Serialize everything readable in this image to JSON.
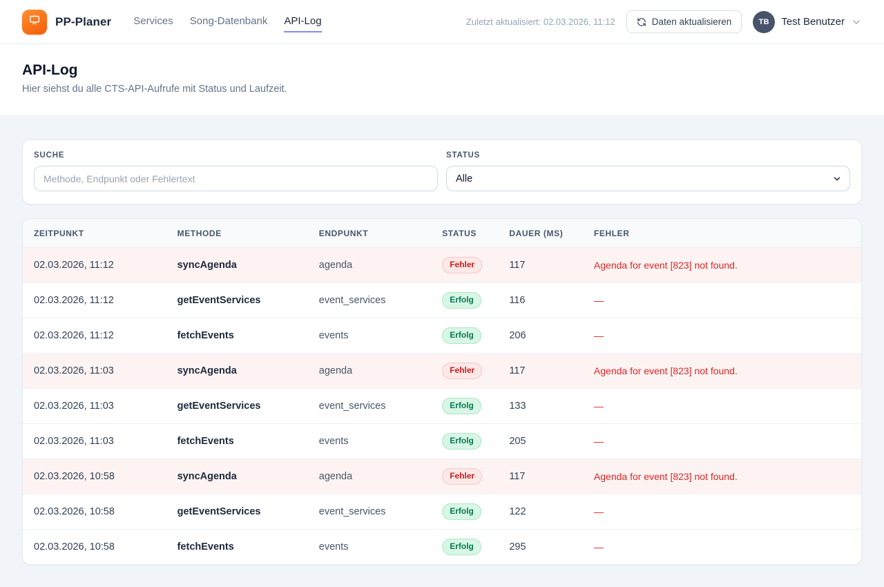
{
  "brand": {
    "name": "PP-Planer",
    "logo_icon": "presentation-board-icon",
    "logo_color": "#f97316"
  },
  "nav": {
    "items": [
      {
        "label": "Services",
        "active": false
      },
      {
        "label": "Song-Datenbank",
        "active": false
      },
      {
        "label": "API-Log",
        "active": true
      }
    ],
    "active_underline_color": "#818cf8"
  },
  "header": {
    "last_updated": "Zuletzt aktualisiert: 02.03.2026, 11:12",
    "refresh_button_label": "Daten aktualisieren",
    "refresh_icon": "refresh-icon",
    "user": {
      "initials": "TB",
      "name": "Test Benutzer",
      "chevron_icon": "chevron-down-icon"
    }
  },
  "page": {
    "title": "API-Log",
    "subtitle": "Hier siehst du alle CTS-API-Aufrufe mit Status und Laufzeit."
  },
  "filters": {
    "search": {
      "label": "SUCHE",
      "placeholder": "Methode, Endpunkt oder Fehlertext",
      "value": ""
    },
    "status": {
      "label": "STATUS",
      "selected": "Alle"
    }
  },
  "table": {
    "columns": [
      "ZEITPUNKT",
      "METHODE",
      "ENDPUNKT",
      "STATUS",
      "DAUER (MS)",
      "FEHLER"
    ],
    "rows": [
      {
        "timestamp": "02.03.2026, 11:12",
        "method": "syncAgenda",
        "endpoint": "agenda",
        "status": "Fehler",
        "state": "error",
        "duration_ms": "117",
        "error": "Agenda for event [823] not found."
      },
      {
        "timestamp": "02.03.2026, 11:12",
        "method": "getEventServices",
        "endpoint": "event_services",
        "status": "Erfolg",
        "state": "success",
        "duration_ms": "116",
        "error": "—"
      },
      {
        "timestamp": "02.03.2026, 11:12",
        "method": "fetchEvents",
        "endpoint": "events",
        "status": "Erfolg",
        "state": "success",
        "duration_ms": "206",
        "error": "—"
      },
      {
        "timestamp": "02.03.2026, 11:03",
        "method": "syncAgenda",
        "endpoint": "agenda",
        "status": "Fehler",
        "state": "error",
        "duration_ms": "117",
        "error": "Agenda for event [823] not found."
      },
      {
        "timestamp": "02.03.2026, 11:03",
        "method": "getEventServices",
        "endpoint": "event_services",
        "status": "Erfolg",
        "state": "success",
        "duration_ms": "133",
        "error": "—"
      },
      {
        "timestamp": "02.03.2026, 11:03",
        "method": "fetchEvents",
        "endpoint": "events",
        "status": "Erfolg",
        "state": "success",
        "duration_ms": "205",
        "error": "—"
      },
      {
        "timestamp": "02.03.2026, 10:58",
        "method": "syncAgenda",
        "endpoint": "agenda",
        "status": "Fehler",
        "state": "error",
        "duration_ms": "117",
        "error": "Agenda for event [823] not found."
      },
      {
        "timestamp": "02.03.2026, 10:58",
        "method": "getEventServices",
        "endpoint": "event_services",
        "status": "Erfolg",
        "state": "success",
        "duration_ms": "122",
        "error": "—"
      },
      {
        "timestamp": "02.03.2026, 10:58",
        "method": "fetchEvents",
        "endpoint": "events",
        "status": "Erfolg",
        "state": "success",
        "duration_ms": "295",
        "error": "—"
      }
    ]
  },
  "colors": {
    "page_background": "#f1f5f9",
    "badge_error_bg": "#fde8e8",
    "badge_error_text": "#c81e1e",
    "badge_success_bg": "#d9f6e5",
    "badge_success_text": "#057a55",
    "error_row_bg": "#fdf3f3",
    "error_text": "#dc2626"
  }
}
